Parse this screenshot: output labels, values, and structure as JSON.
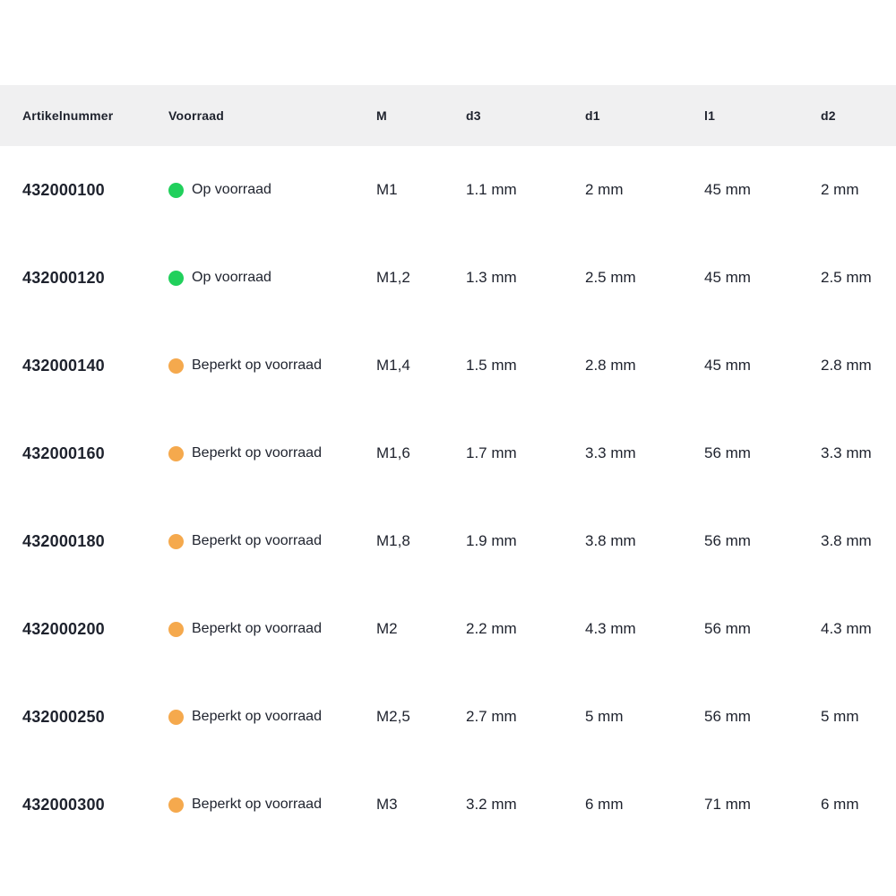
{
  "colors": {
    "header_bg": "#f0f0f1",
    "text": "#1e222d",
    "status_green": "#21d05c",
    "status_orange": "#f5a94d"
  },
  "table": {
    "columns": [
      {
        "key": "artikelnummer",
        "label": "Artikelnummer"
      },
      {
        "key": "voorraad",
        "label": "Voorraad"
      },
      {
        "key": "m",
        "label": "M"
      },
      {
        "key": "d3",
        "label": "d3"
      },
      {
        "key": "d1",
        "label": "d1"
      },
      {
        "key": "l1",
        "label": "l1"
      },
      {
        "key": "d2",
        "label": "d2"
      }
    ],
    "rows": [
      {
        "artikelnummer": "432000100",
        "status": "Op voorraad",
        "status_color": "green",
        "m": "M1",
        "d3": "1.1 mm",
        "d1": "2 mm",
        "l1": "45 mm",
        "d2": "2 mm"
      },
      {
        "artikelnummer": "432000120",
        "status": "Op voorraad",
        "status_color": "green",
        "m": "M1,2",
        "d3": "1.3 mm",
        "d1": "2.5 mm",
        "l1": "45 mm",
        "d2": "2.5 mm"
      },
      {
        "artikelnummer": "432000140",
        "status": "Beperkt op voorraad",
        "status_color": "orange",
        "m": "M1,4",
        "d3": "1.5 mm",
        "d1": "2.8 mm",
        "l1": "45 mm",
        "d2": "2.8 mm"
      },
      {
        "artikelnummer": "432000160",
        "status": "Beperkt op voorraad",
        "status_color": "orange",
        "m": "M1,6",
        "d3": "1.7 mm",
        "d1": "3.3 mm",
        "l1": "56 mm",
        "d2": "3.3 mm"
      },
      {
        "artikelnummer": "432000180",
        "status": "Beperkt op voorraad",
        "status_color": "orange",
        "m": "M1,8",
        "d3": "1.9 mm",
        "d1": "3.8 mm",
        "l1": "56 mm",
        "d2": "3.8 mm"
      },
      {
        "artikelnummer": "432000200",
        "status": "Beperkt op voorraad",
        "status_color": "orange",
        "m": "M2",
        "d3": "2.2 mm",
        "d1": "4.3 mm",
        "l1": "56 mm",
        "d2": "4.3 mm"
      },
      {
        "artikelnummer": "432000250",
        "status": "Beperkt op voorraad",
        "status_color": "orange",
        "m": "M2,5",
        "d3": "2.7 mm",
        "d1": "5 mm",
        "l1": "56 mm",
        "d2": "5 mm"
      },
      {
        "artikelnummer": "432000300",
        "status": "Beperkt op voorraad",
        "status_color": "orange",
        "m": "M3",
        "d3": "3.2 mm",
        "d1": "6 mm",
        "l1": "71 mm",
        "d2": "6 mm"
      }
    ]
  }
}
